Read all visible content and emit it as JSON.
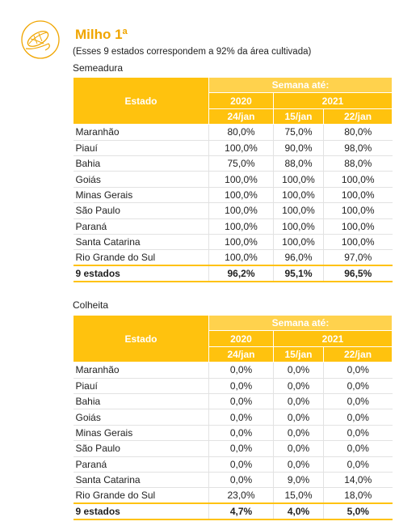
{
  "header": {
    "title": "Milho 1ª",
    "subtitle": "(Esses 9 estados correspondem a 92% da área cultivada)"
  },
  "tables": [
    {
      "caption": "Semeadura",
      "head": {
        "state": "Estado",
        "week": "Semana até:",
        "years": [
          "2020",
          "2021"
        ],
        "dates": [
          "24/jan",
          "15/jan",
          "22/jan"
        ]
      },
      "rows": [
        [
          "Maranhão",
          "80,0%",
          "75,0%",
          "80,0%"
        ],
        [
          "Piauí",
          "100,0%",
          "90,0%",
          "98,0%"
        ],
        [
          "Bahia",
          "75,0%",
          "88,0%",
          "88,0%"
        ],
        [
          "Goiás",
          "100,0%",
          "100,0%",
          "100,0%"
        ],
        [
          "Minas Gerais",
          "100,0%",
          "100,0%",
          "100,0%"
        ],
        [
          "São Paulo",
          "100,0%",
          "100,0%",
          "100,0%"
        ],
        [
          "Paraná",
          "100,0%",
          "100,0%",
          "100,0%"
        ],
        [
          "Santa Catarina",
          "100,0%",
          "100,0%",
          "100,0%"
        ],
        [
          "Rio Grande do Sul",
          "100,0%",
          "96,0%",
          "97,0%"
        ]
      ],
      "total": [
        "9 estados",
        "96,2%",
        "95,1%",
        "96,5%"
      ]
    },
    {
      "caption": "Colheita",
      "head": {
        "state": "Estado",
        "week": "Semana até:",
        "years": [
          "2020",
          "2021"
        ],
        "dates": [
          "24/jan",
          "15/jan",
          "22/jan"
        ]
      },
      "rows": [
        [
          "Maranhão",
          "0,0%",
          "0,0%",
          "0,0%"
        ],
        [
          "Piauí",
          "0,0%",
          "0,0%",
          "0,0%"
        ],
        [
          "Bahia",
          "0,0%",
          "0,0%",
          "0,0%"
        ],
        [
          "Goiás",
          "0,0%",
          "0,0%",
          "0,0%"
        ],
        [
          "Minas Gerais",
          "0,0%",
          "0,0%",
          "0,0%"
        ],
        [
          "São Paulo",
          "0,0%",
          "0,0%",
          "0,0%"
        ],
        [
          "Paraná",
          "0,0%",
          "0,0%",
          "0,0%"
        ],
        [
          "Santa Catarina",
          "0,0%",
          "9,0%",
          "14,0%"
        ],
        [
          "Rio Grande do Sul",
          "23,0%",
          "15,0%",
          "18,0%"
        ]
      ],
      "total": [
        "9 estados",
        "4,7%",
        "4,0%",
        "5,0%"
      ]
    }
  ]
}
